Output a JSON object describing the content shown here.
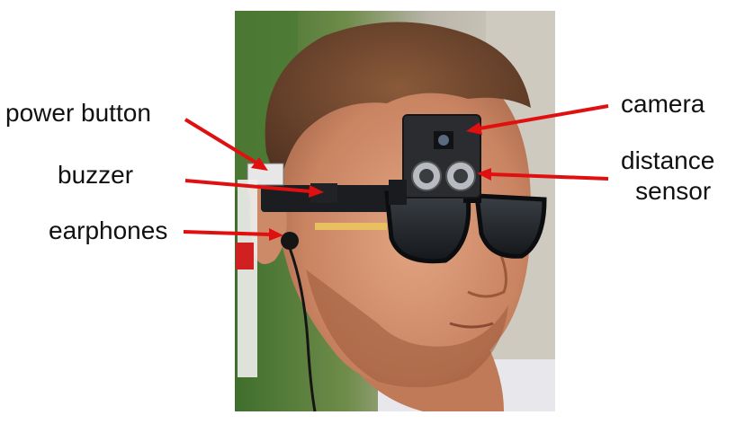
{
  "labels": {
    "power_button": "power button",
    "buzzer": "buzzer",
    "earphones": "earphones",
    "camera": "camera",
    "distance_sensor_line1": "distance",
    "distance_sensor_line2": "sensor"
  },
  "colors": {
    "arrow": "#e01010",
    "text": "#111111"
  }
}
